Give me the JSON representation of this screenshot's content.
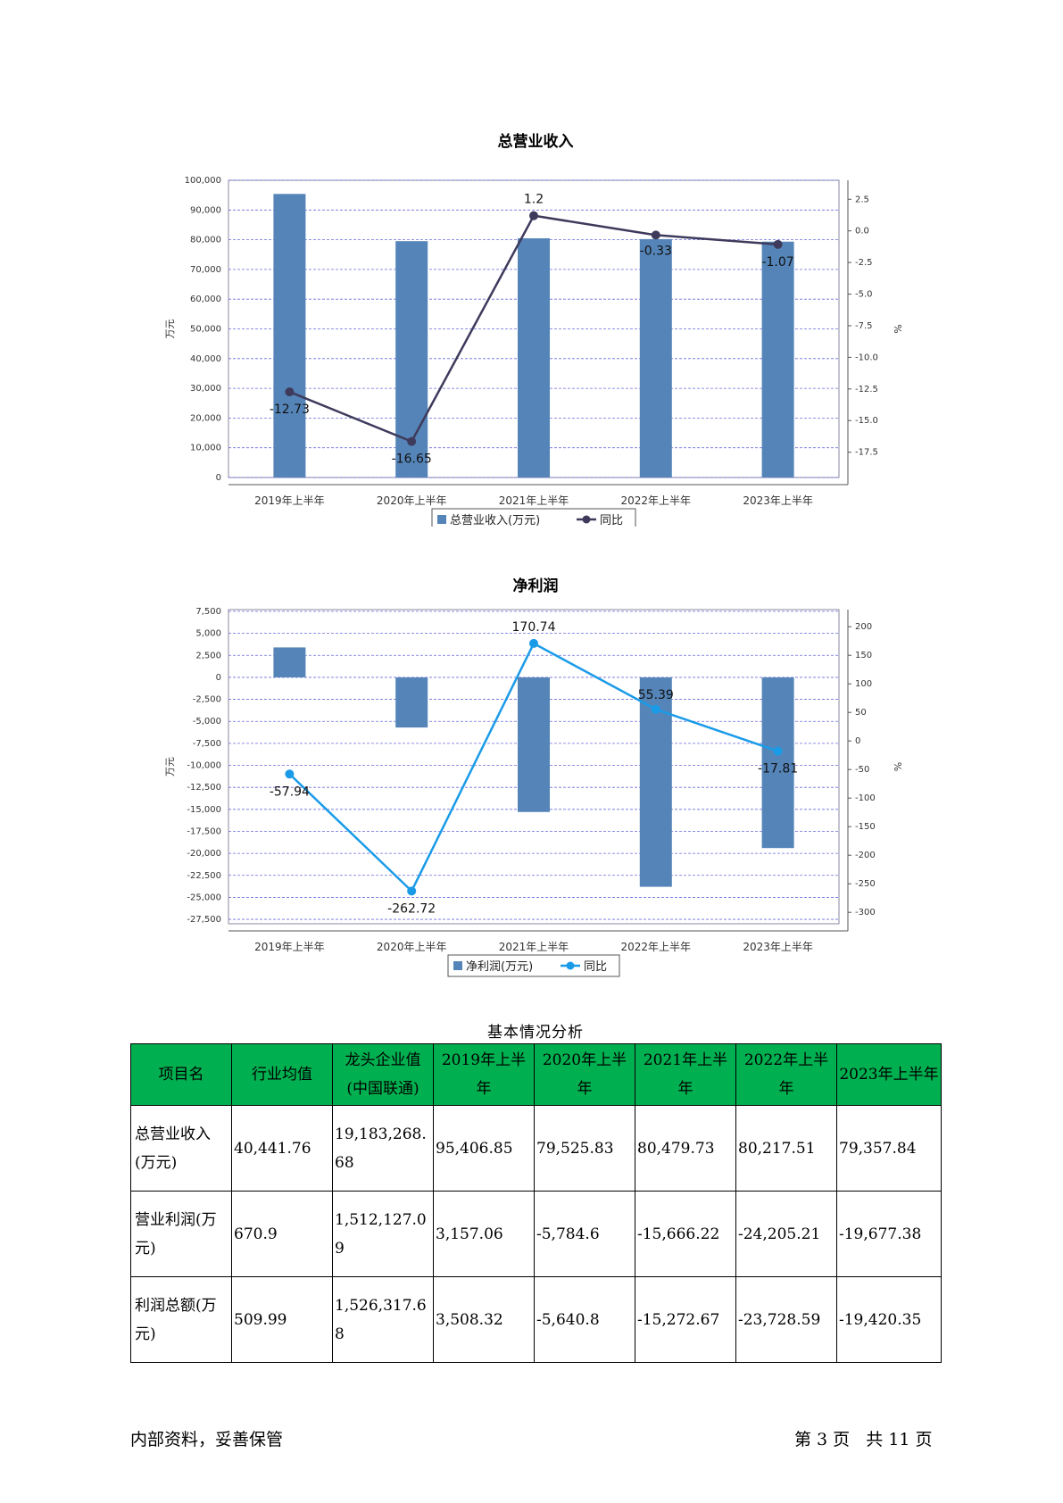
{
  "chart_data": [
    {
      "type": "bar",
      "title": "总营业收入",
      "categories": [
        "2019年上半年",
        "2020年上半年",
        "2021年上半年",
        "2022年上半年",
        "2023年上半年"
      ],
      "series": [
        {
          "name": "总营业收入(万元)",
          "type": "bar",
          "axis": "left",
          "values": [
            95406.85,
            79525.83,
            80479.73,
            80217.51,
            79357.84
          ]
        },
        {
          "name": "同比",
          "type": "line",
          "axis": "right",
          "values": [
            -12.73,
            -16.65,
            1.2,
            -0.33,
            -1.07
          ]
        }
      ],
      "data_labels": [
        "-12.73",
        "-16.65",
        "1.2",
        "-0.33",
        "-1.07"
      ],
      "ylabel": "万元",
      "y2label": "%",
      "ylim": [
        0,
        100000
      ],
      "yticks": [
        "100,000",
        "90,000",
        "80,000",
        "70,000",
        "60,000",
        "50,000",
        "40,000",
        "30,000",
        "20,000",
        "10,000",
        "0"
      ],
      "y2lim": [
        -19.5,
        4
      ],
      "y2ticks": [
        "2.5",
        "0.0",
        "-2.5",
        "-5.0",
        "-7.5",
        "-10.0",
        "-12.5",
        "-15.0",
        "-17.5"
      ],
      "legend": [
        "总营业收入(万元)",
        "同比"
      ],
      "legend_position": "bottom",
      "grid": true,
      "colors": {
        "bar": "#5585b8",
        "line": "#3e3a5c"
      }
    },
    {
      "type": "bar",
      "title": "净利润",
      "categories": [
        "2019年上半年",
        "2020年上半年",
        "2021年上半年",
        "2022年上半年",
        "2023年上半年"
      ],
      "series": [
        {
          "name": "净利润(万元)",
          "type": "bar",
          "axis": "left",
          "values": [
            3400,
            -5700,
            -15300,
            -23800,
            -19400
          ]
        },
        {
          "name": "同比",
          "type": "line",
          "axis": "right",
          "values": [
            -57.94,
            -262.72,
            170.74,
            55.39,
            -17.81
          ]
        }
      ],
      "data_labels": [
        "-57.94",
        "-262.72",
        "170.74",
        "55.39",
        "-17.81"
      ],
      "ylabel": "万元",
      "y2label": "%",
      "ylim": [
        -28000,
        7700
      ],
      "yticks": [
        "7,500",
        "5,000",
        "2,500",
        "0",
        "-2,500",
        "-5,000",
        "-7,500",
        "-10,000",
        "-12,500",
        "-15,000",
        "-17,500",
        "-20,000",
        "-22,500",
        "-25,000",
        "-27,500"
      ],
      "y2lim": [
        -320,
        230
      ],
      "y2ticks": [
        "200",
        "150",
        "100",
        "50",
        "0",
        "-50",
        "-100",
        "-150",
        "-200",
        "-250",
        "-300"
      ],
      "legend": [
        "净利润(万元)",
        "同比"
      ],
      "legend_position": "bottom",
      "grid": true,
      "colors": {
        "bar": "#5585b8",
        "line": "#1a9be8"
      }
    }
  ],
  "table": {
    "caption": "基本情况分析",
    "headers": [
      "项目名",
      "行业均值",
      "龙头企业值(中国联通)",
      "2019年上半年",
      "2020年上半年",
      "2021年上半年",
      "2022年上半年",
      "2023年上半年"
    ],
    "rows": [
      [
        "总营业收入(万元)",
        "40,441.76",
        "19,183,268.68",
        "95,406.85",
        "79,525.83",
        "80,479.73",
        "80,217.51",
        "79,357.84"
      ],
      [
        "营业利润(万元)",
        "670.9",
        "1,512,127.09",
        "3,157.06",
        "-5,784.6",
        "-15,666.22",
        "-24,205.21",
        "-19,677.38"
      ],
      [
        "利润总额(万元)",
        "509.99",
        "1,526,317.68",
        "3,508.32",
        "-5,640.8",
        "-15,272.67",
        "-23,728.59",
        "-19,420.35"
      ]
    ]
  },
  "footer": {
    "left": "内部资料，妥善保管",
    "right": "第 3 页   共 11 页"
  }
}
